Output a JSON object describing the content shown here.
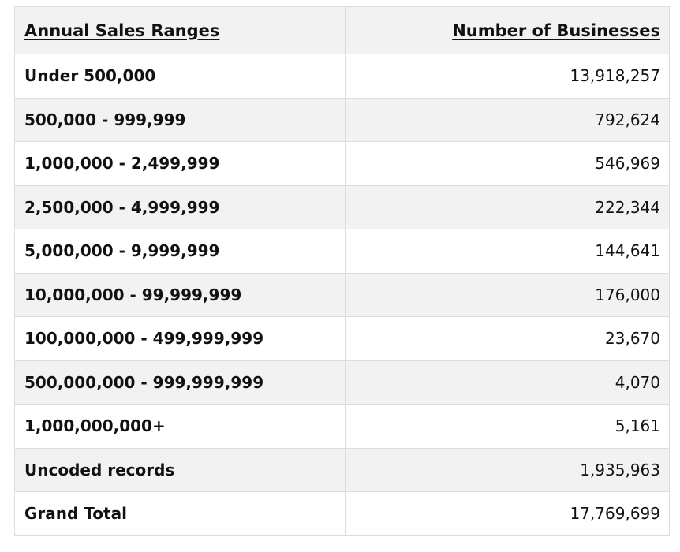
{
  "table": {
    "headers": {
      "range": "Annual Sales Ranges",
      "count": "Number of Businesses"
    },
    "rows": [
      {
        "range": "Under 500,000",
        "count": "13,918,257"
      },
      {
        "range": "500,000 - 999,999",
        "count": "792,624"
      },
      {
        "range": "1,000,000 - 2,499,999",
        "count": "546,969"
      },
      {
        "range": "2,500,000 - 4,999,999",
        "count": "222,344"
      },
      {
        "range": "5,000,000 - 9,999,999",
        "count": "144,641"
      },
      {
        "range": "10,000,000 - 99,999,999",
        "count": "176,000"
      },
      {
        "range": "100,000,000 - 499,999,999",
        "count": "23,670"
      },
      {
        "range": "500,000,000 - 999,999,999",
        "count": "4,070"
      },
      {
        "range": "1,000,000,000+",
        "count": "5,161"
      },
      {
        "range": "Uncoded records",
        "count": "1,935,963"
      },
      {
        "range": "Grand Total",
        "count": "17,769,699"
      }
    ]
  }
}
